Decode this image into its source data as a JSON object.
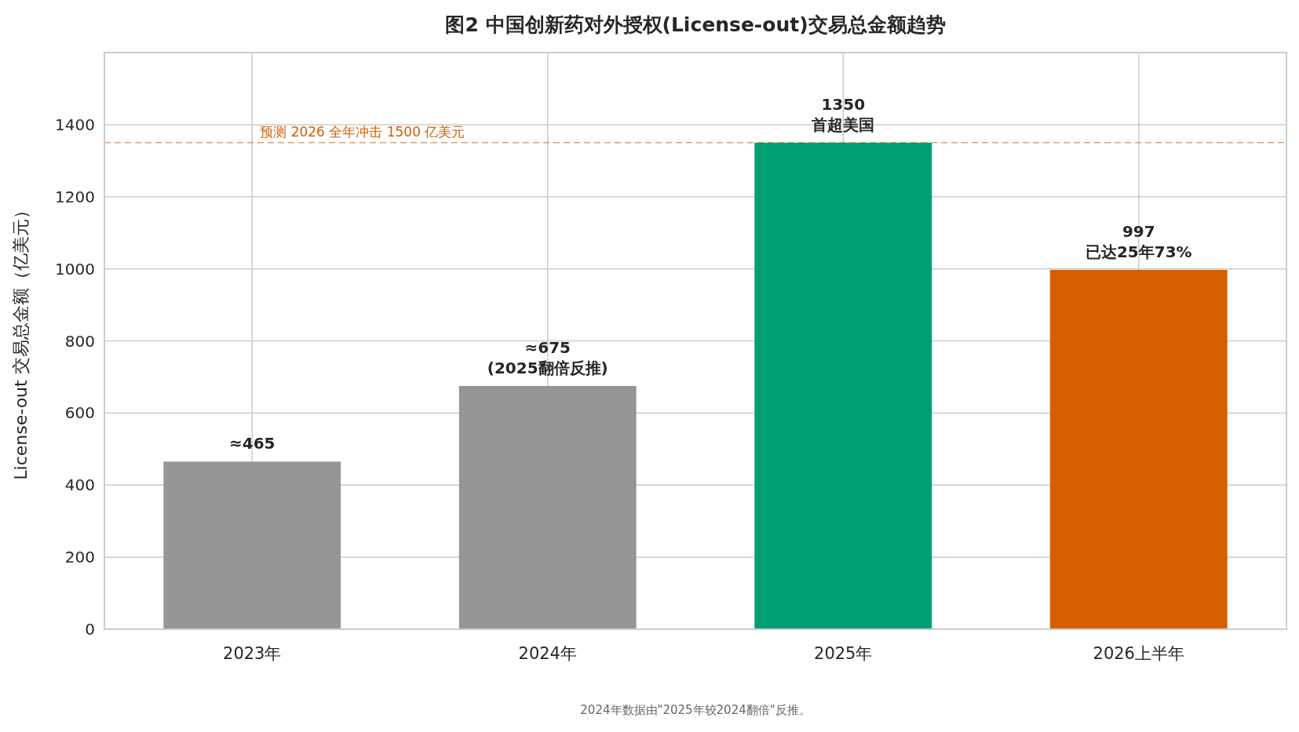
{
  "chart_data": {
    "type": "bar",
    "title": "图2  中国创新药对外授权(License-out)交易总金额趋势",
    "ylabel": "License-out 交易总金额（亿美元）",
    "categories": [
      "2023年",
      "2024年",
      "2025年",
      "2026上半年"
    ],
    "values": [
      465,
      675,
      1350,
      997
    ],
    "colors": [
      "#969696",
      "#969696",
      "#009e73",
      "#d55e00"
    ],
    "value_labels": [
      "≈465",
      "≈675\n(2025翻倍反推)",
      "1350\n首超美国",
      "997\n已达25年73%"
    ],
    "ylim": [
      0,
      1600
    ],
    "yticks": [
      0,
      200,
      400,
      600,
      800,
      1000,
      1200,
      1400
    ],
    "grid": true,
    "ref_lines": [
      {
        "axis": "y",
        "value": 1350,
        "label": "预测 2026 全年冲击 1500 亿美元",
        "color": "#d55e00",
        "line_style": "dashed"
      }
    ],
    "annotations": [
      "2024年数据由\"2025年较2024翻倍\"反推。"
    ]
  }
}
